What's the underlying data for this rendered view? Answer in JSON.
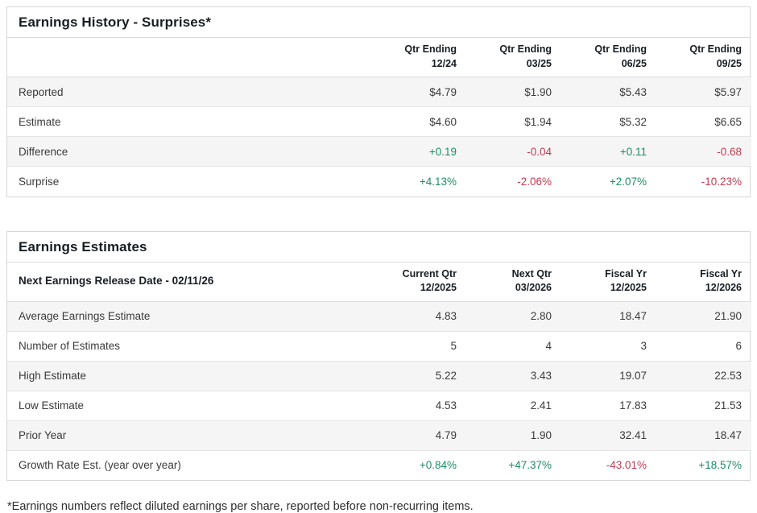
{
  "colors": {
    "positive": "#1e8c66",
    "negative": "#c23a52",
    "alt_row_bg": "#f5f5f5",
    "border": "#d6d6d6"
  },
  "earnings_history": {
    "title": "Earnings History - Surprises*",
    "corner_label": "",
    "columns": [
      {
        "line1": "Qtr Ending",
        "line2": "12/24"
      },
      {
        "line1": "Qtr Ending",
        "line2": "03/25"
      },
      {
        "line1": "Qtr Ending",
        "line2": "06/25"
      },
      {
        "line1": "Qtr Ending",
        "line2": "09/25"
      }
    ],
    "rows": [
      {
        "label": "Reported",
        "values": [
          "$4.79",
          "$1.90",
          "$5.43",
          "$5.97"
        ],
        "tones": [
          "",
          "",
          "",
          ""
        ]
      },
      {
        "label": "Estimate",
        "values": [
          "$4.60",
          "$1.94",
          "$5.32",
          "$6.65"
        ],
        "tones": [
          "",
          "",
          "",
          ""
        ]
      },
      {
        "label": "Difference",
        "values": [
          "+0.19",
          "-0.04",
          "+0.11",
          "-0.68"
        ],
        "tones": [
          "pos",
          "neg",
          "pos",
          "neg"
        ]
      },
      {
        "label": "Surprise",
        "values": [
          "+4.13%",
          "-2.06%",
          "+2.07%",
          "-10.23%"
        ],
        "tones": [
          "pos",
          "neg",
          "pos",
          "neg"
        ]
      }
    ]
  },
  "earnings_estimates": {
    "title": "Earnings Estimates",
    "corner_label": "Next Earnings Release Date - 02/11/26",
    "columns": [
      {
        "line1": "Current Qtr",
        "line2": "12/2025"
      },
      {
        "line1": "Next Qtr",
        "line2": "03/2026"
      },
      {
        "line1": "Fiscal Yr",
        "line2": "12/2025"
      },
      {
        "line1": "Fiscal Yr",
        "line2": "12/2026"
      }
    ],
    "rows": [
      {
        "label": "Average Earnings Estimate",
        "values": [
          "4.83",
          "2.80",
          "18.47",
          "21.90"
        ],
        "tones": [
          "",
          "",
          "",
          ""
        ]
      },
      {
        "label": "Number of Estimates",
        "values": [
          "5",
          "4",
          "3",
          "6"
        ],
        "tones": [
          "",
          "",
          "",
          ""
        ]
      },
      {
        "label": "High Estimate",
        "values": [
          "5.22",
          "3.43",
          "19.07",
          "22.53"
        ],
        "tones": [
          "",
          "",
          "",
          ""
        ]
      },
      {
        "label": "Low Estimate",
        "values": [
          "4.53",
          "2.41",
          "17.83",
          "21.53"
        ],
        "tones": [
          "",
          "",
          "",
          ""
        ]
      },
      {
        "label": "Prior Year",
        "values": [
          "4.79",
          "1.90",
          "32.41",
          "18.47"
        ],
        "tones": [
          "",
          "",
          "",
          ""
        ]
      },
      {
        "label": "Growth Rate Est. (year over year)",
        "values": [
          "+0.84%",
          "+47.37%",
          "-43.01%",
          "+18.57%"
        ],
        "tones": [
          "pos",
          "pos",
          "neg",
          "pos"
        ]
      }
    ]
  },
  "footnote": "*Earnings numbers reflect diluted earnings per share, reported before non-recurring items."
}
